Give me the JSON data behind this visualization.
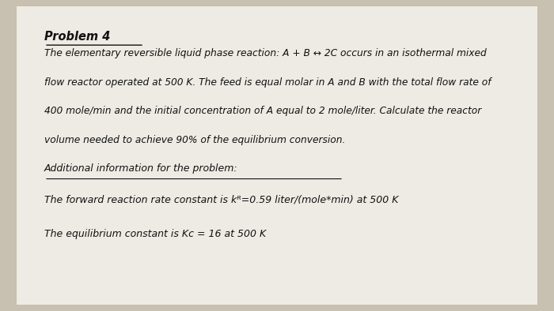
{
  "title": "Problem 4",
  "bg_color": "#c8c0b0",
  "page_color": "#eeebe4",
  "paragraph1_lines": [
    "The elementary reversible liquid phase reaction: A + B ↔ 2C occurs in an isothermal mixed",
    "flow reactor operated at 500 K. The feed is equal molar in A and B with the total flow rate of",
    "400 mole/min and the initial concentration of A equal to 2 mole/liter. Calculate the reactor",
    "volume needed to achieve 90% of the equilibrium conversion."
  ],
  "section_header": "Additional information for the problem:",
  "line1": "The forward reaction rate constant is kᴿ=0.59 liter/(mole*min) at 500 K",
  "line2": "The equilibrium constant is Kᴄ = 16 at 500 K",
  "text_color": "#111111"
}
